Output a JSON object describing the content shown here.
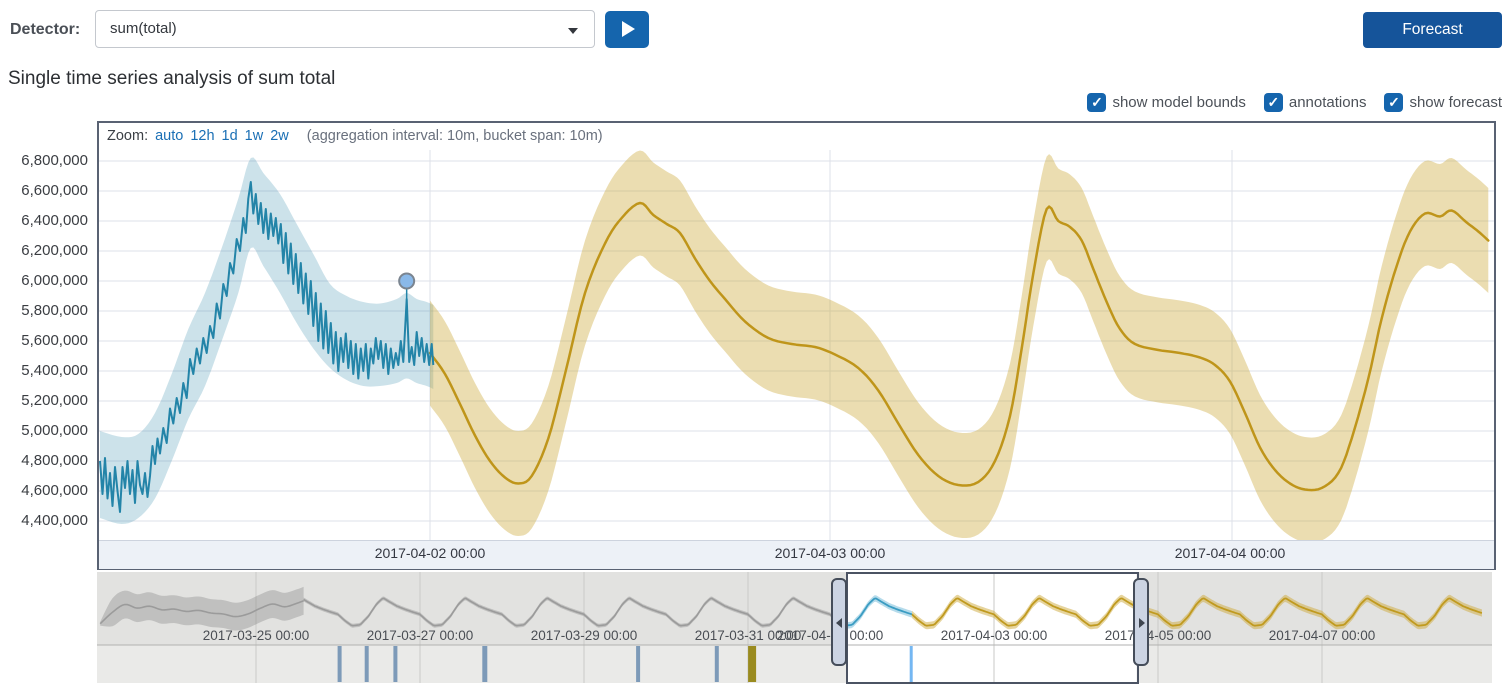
{
  "toolbar": {
    "detector_label": "Detector:",
    "detector_value": "sum(total)",
    "forecast_button": "Forecast"
  },
  "title": "Single time series analysis of sum total",
  "controls": {
    "checkboxes": [
      {
        "label": "show model bounds",
        "checked": true
      },
      {
        "label": "annotations",
        "checked": true
      },
      {
        "label": "show forecast",
        "checked": true
      }
    ]
  },
  "focus_chart": {
    "zoom_label": "Zoom:",
    "zoom_links": [
      "auto",
      "12h",
      "1d",
      "1w",
      "2w"
    ],
    "aggregation_note": "(aggregation interval: 10m, bucket span: 10m)",
    "y_tick_labels": [
      "6,800,000",
      "6,600,000",
      "6,400,000",
      "6,200,000",
      "6,000,000",
      "5,800,000",
      "5,600,000",
      "5,400,000",
      "5,200,000",
      "5,000,000",
      "4,800,000",
      "4,600,000",
      "4,400,000"
    ],
    "x_ticks": [
      {
        "hour": 24,
        "label": "2017-04-02 00:00"
      },
      {
        "hour": 48,
        "label": "2017-04-03 00:00"
      },
      {
        "hour": 72,
        "label": "2017-04-04 00:00"
      }
    ]
  },
  "colors": {
    "primary_blue": "#1565ad",
    "forecast_button_blue": "#15549a",
    "link_blue": "#1a6fb5",
    "actual_line": "#2384a8",
    "model_bounds_fill": "rgba(50,140,170,0.25)",
    "forecast_line": "#bf951a",
    "forecast_fill": "rgba(205,170,60,0.40)",
    "marker_fill": "#8ab9e9",
    "marker_stroke": "#7b8590",
    "grid": "#dde1e8",
    "context_gray_line": "#9b9b9b",
    "context_gray_fill": "rgba(130,130,130,0.35)",
    "context_blue_line": "#3a9cc2",
    "context_blue_fill": "rgba(90,175,210,0.45)",
    "context_gold_line": "#c09a1f",
    "context_gold_fill": "rgba(205,170,60,0.50)",
    "context_bg": "#e2e2e0",
    "swimlane_bg": "#eaeae8",
    "context_grid": "#c9c9c7",
    "bar_blue": "#7d9ab8",
    "bar_olive": "#9a8b1f",
    "bar_bright": "#74b7f2"
  },
  "chart_data": {
    "type": "line",
    "focus": {
      "x_unit": "hours since 2017-04-01 00:00",
      "y_unit": "sum(total)",
      "ylim_millions": [
        4.27,
        6.87
      ],
      "actual_line_millions": [
        [
          4.2,
          4.8
        ],
        [
          4.35,
          4.58
        ],
        [
          4.5,
          4.82
        ],
        [
          4.65,
          4.55
        ],
        [
          4.8,
          4.72
        ],
        [
          4.95,
          4.5
        ],
        [
          5.1,
          4.76
        ],
        [
          5.25,
          4.6
        ],
        [
          5.4,
          4.46
        ],
        [
          5.55,
          4.76
        ],
        [
          5.7,
          4.62
        ],
        [
          5.85,
          4.8
        ],
        [
          6.0,
          4.58
        ],
        [
          6.15,
          4.74
        ],
        [
          6.3,
          4.52
        ],
        [
          6.45,
          4.8
        ],
        [
          6.6,
          4.64
        ],
        [
          6.75,
          4.58
        ],
        [
          6.9,
          4.72
        ],
        [
          7.05,
          4.56
        ],
        [
          7.2,
          4.7
        ],
        [
          7.35,
          4.9
        ],
        [
          7.5,
          4.78
        ],
        [
          7.65,
          4.95
        ],
        [
          7.8,
          4.85
        ],
        [
          8.0,
          5.02
        ],
        [
          8.2,
          4.92
        ],
        [
          8.4,
          5.15
        ],
        [
          8.6,
          5.05
        ],
        [
          8.8,
          5.22
        ],
        [
          9.0,
          5.12
        ],
        [
          9.2,
          5.32
        ],
        [
          9.4,
          5.22
        ],
        [
          9.6,
          5.48
        ],
        [
          9.8,
          5.38
        ],
        [
          10.0,
          5.55
        ],
        [
          10.2,
          5.45
        ],
        [
          10.4,
          5.62
        ],
        [
          10.6,
          5.52
        ],
        [
          10.8,
          5.7
        ],
        [
          11.0,
          5.62
        ],
        [
          11.2,
          5.85
        ],
        [
          11.4,
          5.75
        ],
        [
          11.6,
          5.98
        ],
        [
          11.8,
          5.9
        ],
        [
          12.0,
          6.12
        ],
        [
          12.2,
          6.05
        ],
        [
          12.4,
          6.28
        ],
        [
          12.6,
          6.2
        ],
        [
          12.8,
          6.42
        ],
        [
          12.95,
          6.32
        ],
        [
          13.1,
          6.55
        ],
        [
          13.25,
          6.66
        ],
        [
          13.4,
          6.45
        ],
        [
          13.55,
          6.58
        ],
        [
          13.7,
          6.38
        ],
        [
          13.85,
          6.52
        ],
        [
          14.0,
          6.32
        ],
        [
          14.15,
          6.48
        ],
        [
          14.3,
          6.28
        ],
        [
          14.45,
          6.45
        ],
        [
          14.6,
          6.3
        ],
        [
          14.75,
          6.42
        ],
        [
          14.9,
          6.25
        ],
        [
          15.05,
          6.38
        ],
        [
          15.2,
          6.12
        ],
        [
          15.35,
          6.32
        ],
        [
          15.5,
          6.05
        ],
        [
          15.65,
          6.25
        ],
        [
          15.8,
          5.98
        ],
        [
          15.95,
          6.18
        ],
        [
          16.1,
          5.92
        ],
        [
          16.25,
          6.12
        ],
        [
          16.4,
          5.85
        ],
        [
          16.55,
          6.05
        ],
        [
          16.7,
          5.78
        ],
        [
          16.85,
          6.0
        ],
        [
          17.0,
          5.7
        ],
        [
          17.15,
          5.92
        ],
        [
          17.3,
          5.6
        ],
        [
          17.45,
          5.85
        ],
        [
          17.6,
          5.55
        ],
        [
          17.75,
          5.8
        ],
        [
          17.9,
          5.52
        ],
        [
          18.05,
          5.72
        ],
        [
          18.2,
          5.45
        ],
        [
          18.35,
          5.66
        ],
        [
          18.5,
          5.4
        ],
        [
          18.65,
          5.62
        ],
        [
          18.8,
          5.46
        ],
        [
          18.95,
          5.65
        ],
        [
          19.1,
          5.42
        ],
        [
          19.25,
          5.6
        ],
        [
          19.4,
          5.38
        ],
        [
          19.55,
          5.58
        ],
        [
          19.7,
          5.35
        ],
        [
          19.85,
          5.55
        ],
        [
          20.0,
          5.4
        ],
        [
          20.15,
          5.58
        ],
        [
          20.3,
          5.35
        ],
        [
          20.45,
          5.55
        ],
        [
          20.6,
          5.45
        ],
        [
          20.75,
          5.62
        ],
        [
          20.9,
          5.48
        ],
        [
          21.05,
          5.6
        ],
        [
          21.2,
          5.42
        ],
        [
          21.35,
          5.58
        ],
        [
          21.5,
          5.38
        ],
        [
          21.65,
          5.55
        ],
        [
          21.8,
          5.42
        ],
        [
          21.95,
          5.52
        ],
        [
          22.1,
          5.44
        ],
        [
          22.25,
          5.6
        ],
        [
          22.4,
          5.46
        ],
        [
          22.6,
          5.88
        ],
        [
          22.75,
          5.46
        ],
        [
          22.9,
          5.56
        ],
        [
          23.05,
          5.44
        ],
        [
          23.2,
          5.66
        ],
        [
          23.35,
          5.5
        ],
        [
          23.5,
          5.62
        ],
        [
          23.65,
          5.46
        ],
        [
          23.8,
          5.58
        ],
        [
          23.95,
          5.44
        ],
        [
          24.1,
          5.58
        ],
        [
          24.2,
          5.44
        ]
      ],
      "model_bounds_millions": [
        [
          4.2,
          4.42,
          5.0
        ],
        [
          5.5,
          4.38,
          4.96
        ],
        [
          6.5,
          4.42,
          4.98
        ],
        [
          7.5,
          4.55,
          5.12
        ],
        [
          8.5,
          4.8,
          5.38
        ],
        [
          9.5,
          5.08,
          5.68
        ],
        [
          10.5,
          5.3,
          5.92
        ],
        [
          11.5,
          5.6,
          6.22
        ],
        [
          12.5,
          5.92,
          6.55
        ],
        [
          13.25,
          6.22,
          6.82
        ],
        [
          14.0,
          6.1,
          6.72
        ],
        [
          15.0,
          5.92,
          6.58
        ],
        [
          16.0,
          5.72,
          6.38
        ],
        [
          17.0,
          5.55,
          6.18
        ],
        [
          18.0,
          5.42,
          5.98
        ],
        [
          19.0,
          5.34,
          5.9
        ],
        [
          20.0,
          5.3,
          5.86
        ],
        [
          21.0,
          5.3,
          5.85
        ],
        [
          22.0,
          5.32,
          5.88
        ],
        [
          22.6,
          5.35,
          5.92
        ],
        [
          23.2,
          5.32,
          5.88
        ],
        [
          23.8,
          5.3,
          5.86
        ],
        [
          24.2,
          5.28,
          5.84
        ]
      ],
      "forecast_line_millions": [
        [
          24.0,
          5.52
        ],
        [
          24.9,
          5.38
        ],
        [
          25.8,
          5.18
        ],
        [
          26.7,
          4.97
        ],
        [
          27.6,
          4.8
        ],
        [
          28.5,
          4.69
        ],
        [
          29.3,
          4.65
        ],
        [
          30.1,
          4.7
        ],
        [
          31.1,
          4.95
        ],
        [
          32.1,
          5.38
        ],
        [
          33.3,
          5.92
        ],
        [
          34.5,
          6.25
        ],
        [
          35.5,
          6.42
        ],
        [
          36.6,
          6.52
        ],
        [
          37.4,
          6.44
        ],
        [
          38.2,
          6.38
        ],
        [
          39.0,
          6.32
        ],
        [
          39.9,
          6.15
        ],
        [
          40.8,
          6.0
        ],
        [
          41.7,
          5.88
        ],
        [
          42.9,
          5.73
        ],
        [
          44.3,
          5.62
        ],
        [
          45.7,
          5.58
        ],
        [
          47.1,
          5.56
        ],
        [
          48.3,
          5.51
        ],
        [
          49.7,
          5.42
        ],
        [
          50.9,
          5.27
        ],
        [
          52.1,
          5.05
        ],
        [
          53.3,
          4.84
        ],
        [
          54.5,
          4.7
        ],
        [
          55.7,
          4.64
        ],
        [
          56.9,
          4.66
        ],
        [
          57.9,
          4.8
        ],
        [
          58.8,
          5.1
        ],
        [
          59.5,
          5.55
        ],
        [
          60.2,
          6.05
        ],
        [
          61.0,
          6.48
        ],
        [
          61.7,
          6.4
        ],
        [
          62.4,
          6.36
        ],
        [
          63.1,
          6.27
        ],
        [
          63.8,
          6.08
        ],
        [
          64.6,
          5.86
        ],
        [
          65.4,
          5.68
        ],
        [
          66.3,
          5.58
        ],
        [
          67.7,
          5.54
        ],
        [
          69.0,
          5.52
        ],
        [
          70.2,
          5.49
        ],
        [
          71.1,
          5.44
        ],
        [
          72.0,
          5.33
        ],
        [
          72.9,
          5.12
        ],
        [
          73.8,
          4.89
        ],
        [
          74.7,
          4.74
        ],
        [
          75.6,
          4.65
        ],
        [
          76.5,
          4.61
        ],
        [
          77.5,
          4.62
        ],
        [
          78.5,
          4.72
        ],
        [
          79.3,
          4.95
        ],
        [
          80.3,
          5.35
        ],
        [
          81.1,
          5.75
        ],
        [
          82.0,
          6.1
        ],
        [
          82.8,
          6.33
        ],
        [
          83.7,
          6.45
        ],
        [
          84.6,
          6.43
        ],
        [
          85.3,
          6.47
        ],
        [
          86.2,
          6.39
        ],
        [
          86.9,
          6.33
        ],
        [
          87.5,
          6.27
        ]
      ],
      "forecast_margin_millions": 0.35,
      "marker": {
        "hour": 22.6,
        "value_millions": 6.0
      }
    },
    "context": {
      "x_unit": "days since 2017-04-01 00:00",
      "day_profile": [
        [
          0.0,
          5.42
        ],
        [
          0.08,
          5.05
        ],
        [
          0.17,
          4.72
        ],
        [
          0.27,
          4.78
        ],
        [
          0.37,
          5.3
        ],
        [
          0.47,
          6.05
        ],
        [
          0.55,
          6.42
        ],
        [
          0.63,
          6.18
        ],
        [
          0.72,
          5.92
        ],
        [
          0.82,
          5.72
        ],
        [
          0.92,
          5.55
        ],
        [
          1.0,
          5.42
        ]
      ],
      "pre_history_millions": [
        [
          -8.9,
          4.85
        ],
        [
          -8.75,
          5.55
        ],
        [
          -8.6,
          6.02
        ],
        [
          -8.45,
          5.8
        ],
        [
          -8.3,
          5.92
        ],
        [
          -8.15,
          5.7
        ],
        [
          -8.0,
          5.74
        ],
        [
          -7.85,
          5.6
        ],
        [
          -7.7,
          5.66
        ],
        [
          -7.55,
          5.5
        ],
        [
          -7.4,
          5.44
        ],
        [
          -7.25,
          5.28
        ],
        [
          -7.1,
          5.44
        ],
        [
          -6.95,
          5.78
        ],
        [
          -6.8,
          6.05
        ],
        [
          -6.65,
          5.88
        ],
        [
          -6.5,
          6.1
        ],
        [
          -6.42,
          6.25
        ]
      ],
      "pre_history_margin_millions": 0.85,
      "segments": {
        "actual_gray": [
          -6.42,
          0.22
        ],
        "actual_selected": [
          0.22,
          1.0
        ],
        "forecast": [
          1.0,
          7.95
        ]
      },
      "margins_millions": {
        "gray": 0.12,
        "selected": 0.2,
        "forecast": 0.22
      },
      "tick_labels": [
        {
          "d": -7,
          "label": "2017-03-25 00:00"
        },
        {
          "d": -5,
          "label": "2017-03-27 00:00"
        },
        {
          "d": -3,
          "label": "2017-03-29 00:00"
        },
        {
          "d": -1,
          "label": "2017-03-31 00:00"
        },
        {
          "d": 0,
          "label": "2017-04-01 00:00"
        },
        {
          "d": 2,
          "label": "2017-04-03 00:00"
        },
        {
          "d": 4,
          "label": "2017-04-05 00:00"
        },
        {
          "d": 6,
          "label": "2017-04-07 00:00"
        }
      ],
      "grid_days": [
        -7,
        -5,
        -3,
        -1,
        2,
        4,
        6
      ],
      "selection_days": [
        0.22,
        3.74
      ],
      "anomaly_bars": [
        {
          "d": -5.98,
          "severity": "bar_blue",
          "w": 4
        },
        {
          "d": -5.65,
          "severity": "bar_blue",
          "w": 4
        },
        {
          "d": -5.3,
          "severity": "bar_blue",
          "w": 4
        },
        {
          "d": -4.21,
          "severity": "bar_blue",
          "w": 5
        },
        {
          "d": -2.34,
          "severity": "bar_blue",
          "w": 4
        },
        {
          "d": -1.38,
          "severity": "bar_blue",
          "w": 4
        },
        {
          "d": -0.95,
          "severity": "bar_olive",
          "w": 8
        },
        {
          "d": 0.99,
          "severity": "bar_bright",
          "w": 3
        }
      ]
    }
  }
}
